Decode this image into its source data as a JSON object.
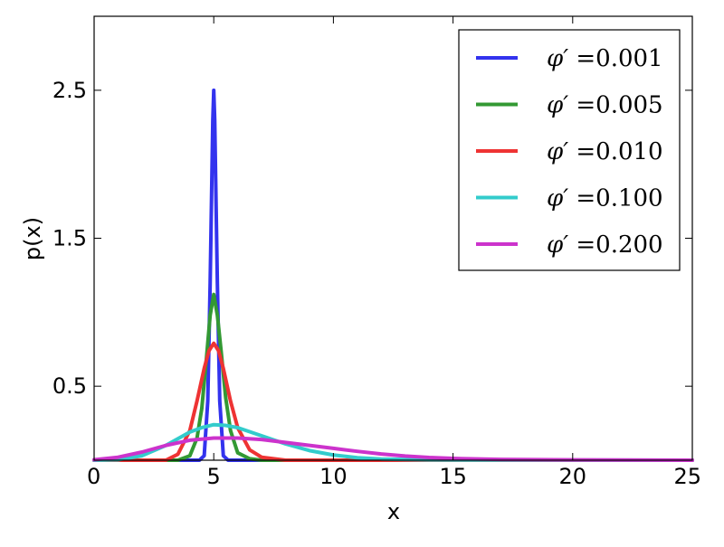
{
  "chart_data": {
    "type": "line",
    "title": "",
    "xlabel": "x",
    "ylabel": "p(x)",
    "xlim": [
      0,
      25
    ],
    "ylim": [
      0,
      3.0
    ],
    "xticks": [
      0,
      5,
      10,
      15,
      20,
      25
    ],
    "xtick_labels": [
      "0",
      "5",
      "10",
      "15",
      "20",
      "25"
    ],
    "yticks": [
      0.5,
      1.5,
      2.5
    ],
    "ytick_labels": [
      "0.5",
      "1.5",
      "2.5"
    ],
    "grid": false,
    "legend_position": "top-right",
    "legend_symbol": "φ′",
    "series": [
      {
        "name": "=0.001",
        "color": "#3333ee",
        "x": [
          0,
          4.4,
          4.6,
          4.75,
          4.85,
          4.92,
          4.96,
          5.0,
          5.04,
          5.08,
          5.15,
          5.25,
          5.4,
          5.6,
          25
        ],
        "y": [
          0,
          0,
          0.03,
          0.4,
          1.2,
          1.9,
          2.3,
          2.5,
          2.3,
          1.9,
          1.2,
          0.4,
          0.03,
          0,
          0
        ]
      },
      {
        "name": "=0.005",
        "color": "#339933",
        "x": [
          0,
          3.5,
          4.0,
          4.3,
          4.5,
          4.7,
          4.85,
          5.0,
          5.15,
          5.3,
          5.5,
          5.7,
          6.0,
          6.5,
          7.0,
          25
        ],
        "y": [
          0,
          0,
          0.03,
          0.15,
          0.35,
          0.7,
          0.98,
          1.12,
          0.98,
          0.75,
          0.42,
          0.2,
          0.05,
          0.01,
          0,
          0
        ]
      },
      {
        "name": "=0.010",
        "color": "#ee3333",
        "x": [
          0,
          3.0,
          3.5,
          4.0,
          4.3,
          4.6,
          4.8,
          5.0,
          5.2,
          5.4,
          5.7,
          6.0,
          6.5,
          7.0,
          8.0,
          25
        ],
        "y": [
          0,
          0,
          0.04,
          0.2,
          0.4,
          0.62,
          0.74,
          0.79,
          0.74,
          0.62,
          0.4,
          0.22,
          0.07,
          0.02,
          0,
          0
        ]
      },
      {
        "name": "=0.100",
        "color": "#33cccc",
        "x": [
          0,
          1,
          2,
          3,
          4,
          4.5,
          5,
          5.5,
          6,
          7,
          8,
          9,
          10,
          11,
          12,
          14,
          25
        ],
        "y": [
          0,
          0.003,
          0.03,
          0.1,
          0.19,
          0.22,
          0.24,
          0.235,
          0.22,
          0.165,
          0.11,
          0.065,
          0.035,
          0.017,
          0.008,
          0.002,
          0
        ]
      },
      {
        "name": "=0.200",
        "color": "#cc33cc",
        "x": [
          0,
          1,
          2,
          3,
          4,
          5,
          6,
          7,
          8,
          9,
          10,
          11,
          12,
          13,
          14,
          15,
          17,
          20,
          25
        ],
        "y": [
          0.003,
          0.02,
          0.055,
          0.1,
          0.135,
          0.15,
          0.15,
          0.14,
          0.12,
          0.1,
          0.08,
          0.06,
          0.042,
          0.028,
          0.018,
          0.012,
          0.005,
          0.002,
          0
        ]
      }
    ]
  }
}
